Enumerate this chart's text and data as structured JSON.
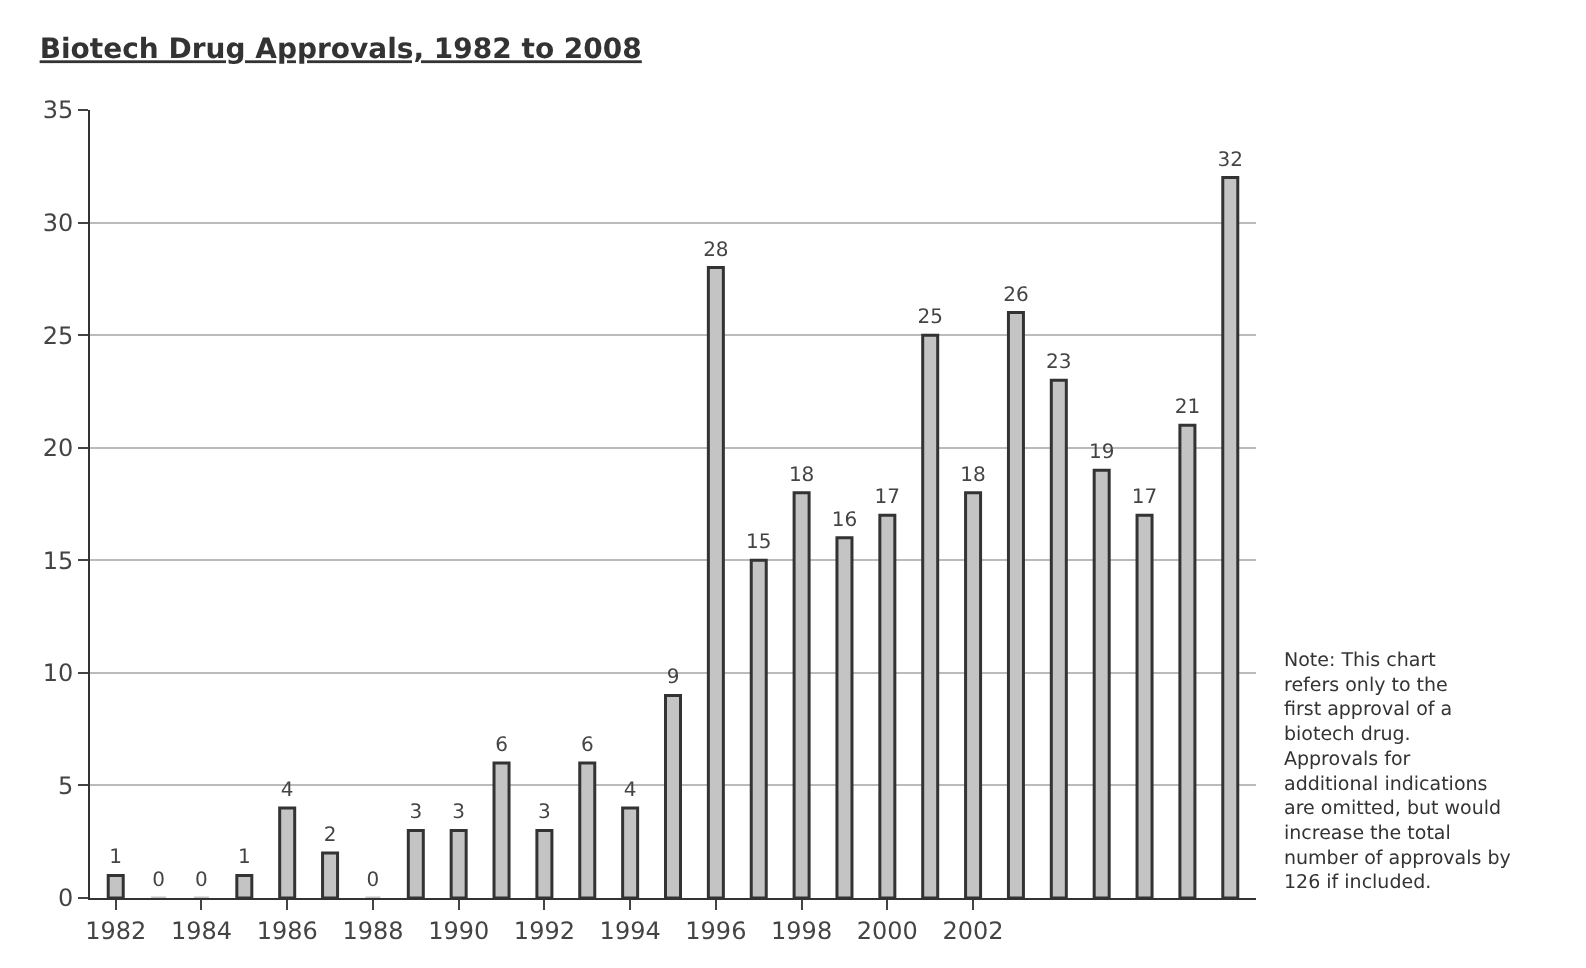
{
  "chart_data": {
    "type": "bar",
    "title": "Biotech Drug Approvals, 1982 to 2008",
    "x": [
      1982,
      1983,
      1984,
      1985,
      1986,
      1987,
      1988,
      1989,
      1990,
      1991,
      1992,
      1993,
      1994,
      1995,
      1996,
      1997,
      1998,
      1999,
      2000,
      2001,
      2002,
      2003,
      2004,
      2005,
      2006,
      2007,
      2008
    ],
    "values": [
      1,
      0,
      0,
      1,
      4,
      2,
      0,
      3,
      3,
      6,
      3,
      6,
      4,
      9,
      28,
      15,
      18,
      16,
      17,
      25,
      18,
      26,
      23,
      19,
      17,
      21,
      32
    ],
    "color": "#c4c4c4",
    "xlim": [
      1981.4,
      2008.6
    ],
    "xticks": [
      1982,
      1984,
      1986,
      1988,
      1990,
      1992,
      1994,
      1996,
      1998,
      2000,
      2002
    ],
    "ylim": [
      0,
      35
    ],
    "yticks": [
      0,
      5,
      10,
      15,
      20,
      25,
      30,
      35
    ],
    "grid": "y",
    "data_labels": true,
    "legend": false,
    "annotations": [
      "Note: This chart refers only to the first approval of a biotech drug. Approvals for additional indications are omitted, but would increase the total number of approvals by 126 if included."
    ]
  }
}
